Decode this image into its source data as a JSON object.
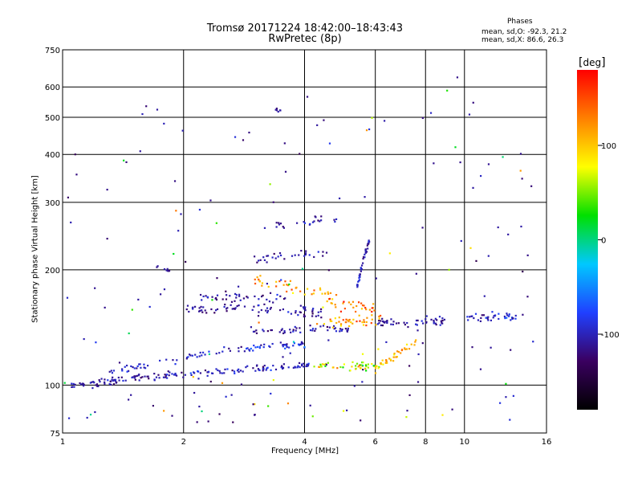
{
  "header": {
    "title_line1": "Tromsø 20171224 18:42:00–18:43:43",
    "title_line2": "RwPretec (8p)"
  },
  "stats": {
    "heading": "Phases",
    "line_o": "mean, sd,O: -92.3, 21.2",
    "line_x": "mean, sd,X: 86.6, 26.3"
  },
  "colorbar": {
    "label": "deg",
    "ticks": [
      100,
      0,
      -100
    ],
    "range": [
      -180,
      180
    ]
  },
  "colors": {
    "stops": [
      "#000000",
      "#3a0060",
      "#2040ff",
      "#00c8ff",
      "#00e000",
      "#ffff00",
      "#ff8000",
      "#ff0000"
    ]
  },
  "chart_data": {
    "type": "scatter",
    "title": "Tromsø 20171224 18:42:00–18:43:43",
    "subtitle": "RwPretec (8p)",
    "xlabel": "Frequency [MHz]",
    "ylabel": "Stationary phase Virtual Height [km]",
    "xscale": "log",
    "yscale": "log",
    "xlim": [
      1,
      16
    ],
    "ylim": [
      75,
      750
    ],
    "xticks": [
      1,
      2,
      4,
      6,
      8,
      10,
      16
    ],
    "yticks": [
      75,
      100,
      200,
      300,
      400,
      500,
      600,
      750
    ],
    "grid": true,
    "color_axis": "phase [deg]",
    "traces": [
      {
        "x0": 1.05,
        "x1": 1.8,
        "h0": 100,
        "h1": 106,
        "n": 70,
        "phase": -110,
        "sd": 18,
        "spread": 0.02
      },
      {
        "x0": 1.8,
        "x1": 4.2,
        "h0": 106,
        "h1": 113,
        "n": 90,
        "phase": -100,
        "sd": 20,
        "spread": 0.018
      },
      {
        "x0": 4.2,
        "x1": 6.2,
        "h0": 113,
        "h1": 112,
        "n": 50,
        "phase": 60,
        "sd": 55,
        "spread": 0.02
      },
      {
        "x0": 6.0,
        "x1": 7.6,
        "h0": 110,
        "h1": 130,
        "n": 40,
        "phase": 110,
        "sd": 30,
        "spread": 0.02
      },
      {
        "x0": 1.3,
        "x1": 2.4,
        "h0": 108,
        "h1": 122,
        "n": 40,
        "phase": -95,
        "sd": 20,
        "spread": 0.02
      },
      {
        "x0": 2.4,
        "x1": 4.0,
        "h0": 122,
        "h1": 128,
        "n": 50,
        "phase": -90,
        "sd": 25,
        "spread": 0.02
      },
      {
        "x0": 2.8,
        "x1": 5.2,
        "h0": 138,
        "h1": 140,
        "n": 50,
        "phase": -110,
        "sd": 20,
        "spread": 0.02
      },
      {
        "x0": 4.2,
        "x1": 6.2,
        "h0": 145,
        "h1": 148,
        "n": 40,
        "phase": 120,
        "sd": 40,
        "spread": 0.03
      },
      {
        "x0": 6.0,
        "x1": 9.0,
        "h0": 145,
        "h1": 148,
        "n": 50,
        "phase": -110,
        "sd": 20,
        "spread": 0.02
      },
      {
        "x0": 10.0,
        "x1": 14.0,
        "h0": 150,
        "h1": 150,
        "n": 40,
        "phase": -95,
        "sd": 30,
        "spread": 0.02
      },
      {
        "x0": 2.0,
        "x1": 3.2,
        "h0": 158,
        "h1": 160,
        "n": 40,
        "phase": -110,
        "sd": 20,
        "spread": 0.025
      },
      {
        "x0": 3.2,
        "x1": 4.4,
        "h0": 158,
        "h1": 155,
        "n": 35,
        "phase": -110,
        "sd": 20,
        "spread": 0.025
      },
      {
        "x0": 2.2,
        "x1": 3.6,
        "h0": 172,
        "h1": 168,
        "n": 40,
        "phase": -110,
        "sd": 20,
        "spread": 0.03
      },
      {
        "x0": 3.0,
        "x1": 4.8,
        "h0": 185,
        "h1": 172,
        "n": 40,
        "phase": 120,
        "sd": 35,
        "spread": 0.04
      },
      {
        "x0": 4.5,
        "x1": 6.0,
        "h0": 165,
        "h1": 158,
        "n": 30,
        "phase": 130,
        "sd": 40,
        "spread": 0.04
      },
      {
        "x0": 5.4,
        "x1": 5.8,
        "h0": 180,
        "h1": 240,
        "n": 40,
        "phase": -100,
        "sd": 20,
        "spread": 0.02
      },
      {
        "x0": 3.0,
        "x1": 4.6,
        "h0": 212,
        "h1": 222,
        "n": 30,
        "phase": -105,
        "sd": 20,
        "spread": 0.02
      },
      {
        "x0": 3.4,
        "x1": 4.8,
        "h0": 262,
        "h1": 272,
        "n": 20,
        "phase": -105,
        "sd": 20,
        "spread": 0.02
      },
      {
        "x0": 1.7,
        "x1": 1.85,
        "h0": 205,
        "h1": 198,
        "n": 8,
        "phase": -110,
        "sd": 10,
        "spread": 0.01
      },
      {
        "x0": 3.3,
        "x1": 3.5,
        "h0": 520,
        "h1": 525,
        "n": 6,
        "phase": -110,
        "sd": 10,
        "spread": 0.01
      }
    ],
    "scatter_sparse": {
      "n": 180,
      "x": [
        1,
        15
      ],
      "h": [
        80,
        660
      ]
    }
  }
}
